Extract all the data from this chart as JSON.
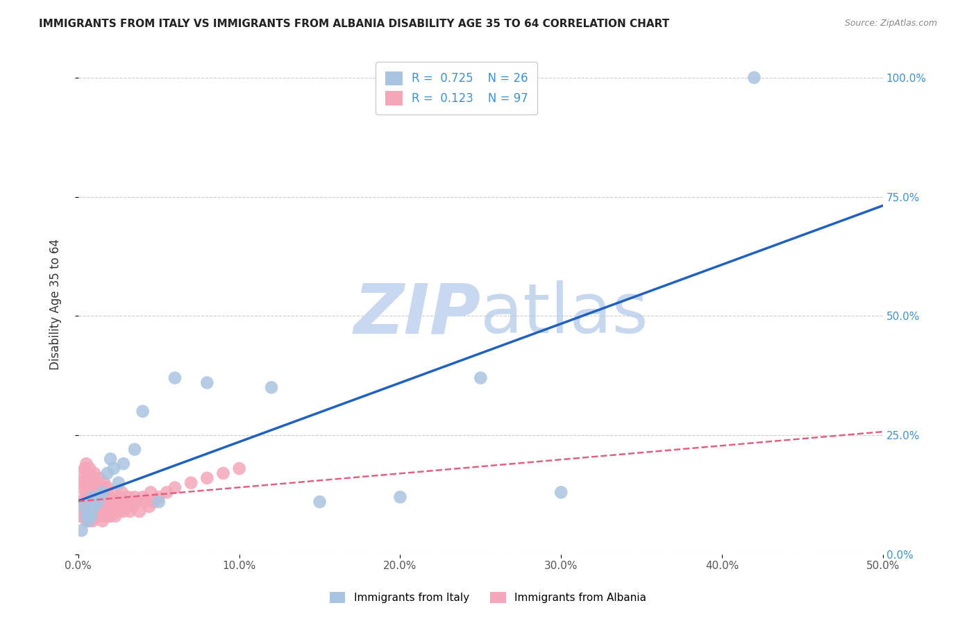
{
  "title": "IMMIGRANTS FROM ITALY VS IMMIGRANTS FROM ALBANIA DISABILITY AGE 35 TO 64 CORRELATION CHART",
  "source": "Source: ZipAtlas.com",
  "xlabel": "",
  "ylabel": "Disability Age 35 to 64",
  "italy_label": "Immigrants from Italy",
  "albania_label": "Immigrants from Albania",
  "italy_R": 0.725,
  "italy_N": 26,
  "albania_R": 0.123,
  "albania_N": 97,
  "italy_color": "#a8c4e0",
  "albania_color": "#f4a7b9",
  "italy_line_color": "#2060c0",
  "albania_line_color": "#e06080",
  "watermark_color": "#c8d8f0",
  "background_color": "#ffffff",
  "xlim": [
    0.0,
    0.5
  ],
  "ylim": [
    0.0,
    1.05
  ],
  "xticks": [
    0.0,
    0.1,
    0.2,
    0.3,
    0.4,
    0.5
  ],
  "yticks": [
    0.0,
    0.25,
    0.5,
    0.75,
    1.0
  ],
  "italy_x": [
    0.002,
    0.004,
    0.005,
    0.006,
    0.007,
    0.008,
    0.009,
    0.01,
    0.012,
    0.015,
    0.018,
    0.02,
    0.022,
    0.025,
    0.028,
    0.035,
    0.04,
    0.05,
    0.06,
    0.08,
    0.12,
    0.15,
    0.2,
    0.25,
    0.3,
    0.42
  ],
  "italy_y": [
    0.05,
    0.1,
    0.08,
    0.07,
    0.09,
    0.08,
    0.12,
    0.1,
    0.11,
    0.13,
    0.17,
    0.2,
    0.18,
    0.15,
    0.19,
    0.22,
    0.3,
    0.11,
    0.37,
    0.36,
    0.35,
    0.11,
    0.12,
    0.37,
    0.13,
    1.0
  ],
  "albania_x": [
    0.001,
    0.002,
    0.002,
    0.003,
    0.003,
    0.003,
    0.004,
    0.004,
    0.004,
    0.005,
    0.005,
    0.005,
    0.005,
    0.005,
    0.006,
    0.006,
    0.006,
    0.006,
    0.006,
    0.006,
    0.007,
    0.007,
    0.007,
    0.007,
    0.007,
    0.008,
    0.008,
    0.008,
    0.008,
    0.008,
    0.009,
    0.009,
    0.009,
    0.009,
    0.01,
    0.01,
    0.01,
    0.01,
    0.01,
    0.011,
    0.011,
    0.011,
    0.012,
    0.012,
    0.012,
    0.013,
    0.013,
    0.013,
    0.014,
    0.014,
    0.015,
    0.015,
    0.015,
    0.015,
    0.016,
    0.016,
    0.016,
    0.017,
    0.017,
    0.018,
    0.018,
    0.018,
    0.019,
    0.019,
    0.02,
    0.02,
    0.021,
    0.021,
    0.022,
    0.023,
    0.024,
    0.025,
    0.026,
    0.026,
    0.027,
    0.028,
    0.029,
    0.03,
    0.031,
    0.032,
    0.033,
    0.034,
    0.035,
    0.036,
    0.038,
    0.04,
    0.042,
    0.044,
    0.045,
    0.047,
    0.05,
    0.055,
    0.06,
    0.07,
    0.08,
    0.09,
    0.1
  ],
  "albania_y": [
    0.08,
    0.14,
    0.17,
    0.09,
    0.11,
    0.15,
    0.08,
    0.12,
    0.18,
    0.1,
    0.13,
    0.16,
    0.07,
    0.19,
    0.09,
    0.11,
    0.14,
    0.17,
    0.08,
    0.12,
    0.1,
    0.13,
    0.16,
    0.07,
    0.18,
    0.09,
    0.11,
    0.14,
    0.08,
    0.15,
    0.1,
    0.12,
    0.16,
    0.07,
    0.09,
    0.11,
    0.13,
    0.08,
    0.17,
    0.1,
    0.12,
    0.15,
    0.09,
    0.11,
    0.14,
    0.08,
    0.12,
    0.16,
    0.09,
    0.13,
    0.08,
    0.11,
    0.14,
    0.07,
    0.1,
    0.12,
    0.15,
    0.09,
    0.13,
    0.08,
    0.11,
    0.14,
    0.09,
    0.12,
    0.08,
    0.11,
    0.09,
    0.13,
    0.1,
    0.08,
    0.11,
    0.09,
    0.12,
    0.1,
    0.13,
    0.09,
    0.11,
    0.1,
    0.12,
    0.09,
    0.11,
    0.1,
    0.12,
    0.11,
    0.09,
    0.12,
    0.11,
    0.1,
    0.13,
    0.11,
    0.12,
    0.13,
    0.14,
    0.15,
    0.16,
    0.17,
    0.18
  ]
}
